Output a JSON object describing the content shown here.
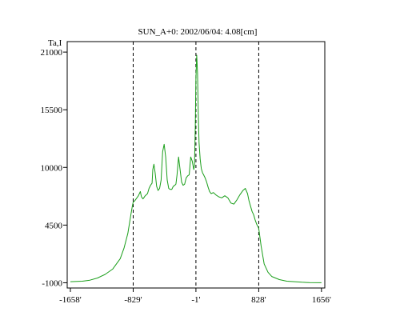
{
  "chart_data": {
    "type": "line",
    "title": "SUN_A+0: 2002/06/04: 4.08[cm]",
    "ylabel": "Ta,I",
    "xlabel": "",
    "xlim": [
      -1700,
      1700
    ],
    "ylim": [
      -1500,
      22000
    ],
    "x_ticks": [
      {
        "value": -1658,
        "label": "-1658'"
      },
      {
        "value": -829,
        "label": "-829'"
      },
      {
        "value": -1,
        "label": "-1'"
      },
      {
        "value": 828,
        "label": "828'"
      },
      {
        "value": 1656,
        "label": "1656'"
      }
    ],
    "y_ticks": [
      {
        "value": -1000,
        "label": "-1000"
      },
      {
        "value": 4500,
        "label": "4500"
      },
      {
        "value": 10000,
        "label": "10000"
      },
      {
        "value": 15500,
        "label": "15500"
      },
      {
        "value": 21000,
        "label": "21000"
      }
    ],
    "vertical_lines": [
      -829,
      -1,
      828
    ],
    "grid": false,
    "series": [
      {
        "color": "#1a9e1a",
        "x": [
          -1658,
          -1500,
          -1400,
          -1300,
          -1200,
          -1100,
          -1000,
          -950,
          -900,
          -860,
          -840,
          -829,
          -810,
          -790,
          -760,
          -735,
          -720,
          -700,
          -690,
          -670,
          -640,
          -620,
          -600,
          -580,
          -570,
          -555,
          -540,
          -520,
          -500,
          -480,
          -460,
          -440,
          -420,
          -400,
          -380,
          -360,
          -340,
          -320,
          -300,
          -280,
          -265,
          -250,
          -230,
          -210,
          -190,
          -170,
          -150,
          -130,
          -110,
          -90,
          -70,
          -50,
          -30,
          -20,
          -10,
          -1,
          10,
          20,
          30,
          40,
          55,
          70,
          85,
          100,
          120,
          140,
          160,
          180,
          200,
          230,
          260,
          300,
          340,
          380,
          420,
          460,
          500,
          540,
          580,
          620,
          650,
          680,
          700,
          720,
          740,
          760,
          780,
          800,
          828,
          860,
          900,
          950,
          1000,
          1100,
          1200,
          1300,
          1400,
          1500,
          1656
        ],
        "y": [
          -900,
          -850,
          -750,
          -550,
          -200,
          300,
          1300,
          2300,
          3700,
          5500,
          6300,
          6700,
          6800,
          7000,
          7300,
          7700,
          7200,
          7000,
          7100,
          7300,
          7500,
          8000,
          8300,
          8500,
          9800,
          10300,
          9500,
          8200,
          7800,
          8000,
          8800,
          11500,
          12200,
          11000,
          8800,
          8000,
          7900,
          7900,
          8200,
          8300,
          8400,
          9300,
          11000,
          9800,
          8600,
          8300,
          8400,
          9000,
          9200,
          9300,
          11000,
          10600,
          9800,
          10200,
          13800,
          18500,
          20700,
          19000,
          15200,
          12400,
          10800,
          9900,
          9500,
          9300,
          9000,
          8600,
          8100,
          7700,
          7500,
          7600,
          7400,
          7200,
          7100,
          7300,
          7100,
          6600,
          6500,
          6900,
          7400,
          7800,
          8000,
          7500,
          6800,
          6300,
          5800,
          5500,
          5000,
          4600,
          4200,
          2500,
          800,
          0,
          -400,
          -700,
          -850,
          -900,
          -950,
          -980,
          -1000
        ]
      }
    ]
  }
}
